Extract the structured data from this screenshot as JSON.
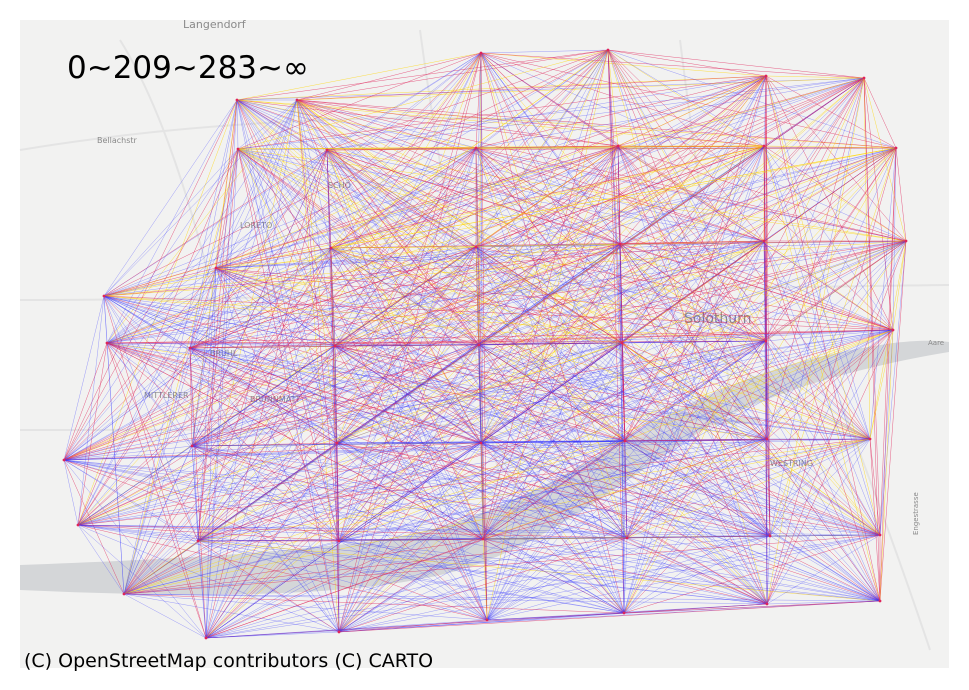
{
  "map": {
    "legend_title": "0~209~283~∞",
    "attribution": "(C) OpenStreetMap contributors (C) CARTO",
    "place_labels": {
      "langendorf": "Langendorf",
      "solothurn": "Solothurn",
      "bellach": "Bellachstr",
      "mittlerer": "MITTLERER",
      "bruehl": "BRÜHL",
      "bruennmatt": "BRUNNMATT",
      "schoe": "SCHÖ",
      "loreto": "LORETO",
      "ivesmatt": "WESTRING",
      "aare": "Aare",
      "engstr": "Engestrasse"
    },
    "colors": {
      "background": "#f2f2f1",
      "river": "#d4d6d8",
      "low": "#3333ff",
      "mid": "#e0245a",
      "high": "#ffd400"
    }
  }
}
